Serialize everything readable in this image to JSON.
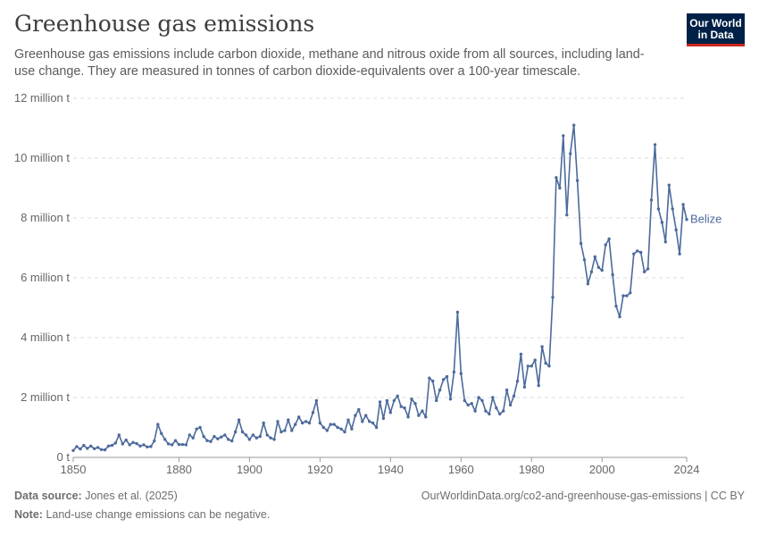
{
  "header": {
    "title": "Greenhouse gas emissions",
    "subtitle": "Greenhouse gas emissions include carbon dioxide, methane and nitrous oxide from all sources, including land-use change. They are measured in tonnes of carbon dioxide-equivalents over a 100-year timescale.",
    "logo_line1": "Our World",
    "logo_line2": "in Data"
  },
  "footer": {
    "source_label": "Data source:",
    "source_text": "Jones et al. (2025)",
    "url_text": "OurWorldinData.org/co2-and-greenhouse-gas-emissions | CC BY",
    "note_label": "Note:",
    "note_text": "Land-use change emissions can be negative."
  },
  "colors": {
    "series": "#4c6a9c",
    "grid": "#dddddd",
    "logo_bg": "#002147",
    "logo_accent": "#ce261e"
  },
  "chart_data": {
    "type": "line",
    "title": "Greenhouse gas emissions",
    "xlabel": "",
    "ylabel": "",
    "xlim": [
      1850,
      2024
    ],
    "ylim": [
      0,
      12000000
    ],
    "grid": "horizontal dashed",
    "y_ticks": [
      {
        "value": 0,
        "label": "0 t"
      },
      {
        "value": 2000000,
        "label": "2 million t"
      },
      {
        "value": 4000000,
        "label": "4 million t"
      },
      {
        "value": 6000000,
        "label": "6 million t"
      },
      {
        "value": 8000000,
        "label": "8 million t"
      },
      {
        "value": 10000000,
        "label": "10 million t"
      },
      {
        "value": 12000000,
        "label": "12 million t"
      }
    ],
    "x_ticks": [
      {
        "value": 1850,
        "label": "1850"
      },
      {
        "value": 1880,
        "label": "1880"
      },
      {
        "value": 1900,
        "label": "1900"
      },
      {
        "value": 1920,
        "label": "1920"
      },
      {
        "value": 1940,
        "label": "1940"
      },
      {
        "value": 1960,
        "label": "1960"
      },
      {
        "value": 1980,
        "label": "1980"
      },
      {
        "value": 2000,
        "label": "2000"
      },
      {
        "value": 2024,
        "label": "2024"
      }
    ],
    "series": [
      {
        "name": "Belize",
        "x": [
          1850,
          1851,
          1852,
          1853,
          1854,
          1855,
          1856,
          1857,
          1858,
          1859,
          1860,
          1861,
          1862,
          1863,
          1864,
          1865,
          1866,
          1867,
          1868,
          1869,
          1870,
          1871,
          1872,
          1873,
          1874,
          1875,
          1876,
          1877,
          1878,
          1879,
          1880,
          1881,
          1882,
          1883,
          1884,
          1885,
          1886,
          1887,
          1888,
          1889,
          1890,
          1891,
          1892,
          1893,
          1894,
          1895,
          1896,
          1897,
          1898,
          1899,
          1900,
          1901,
          1902,
          1903,
          1904,
          1905,
          1906,
          1907,
          1908,
          1909,
          1910,
          1911,
          1912,
          1913,
          1914,
          1915,
          1916,
          1917,
          1918,
          1919,
          1920,
          1921,
          1922,
          1923,
          1924,
          1925,
          1926,
          1927,
          1928,
          1929,
          1930,
          1931,
          1932,
          1933,
          1934,
          1935,
          1936,
          1937,
          1938,
          1939,
          1940,
          1941,
          1942,
          1943,
          1944,
          1945,
          1946,
          1947,
          1948,
          1949,
          1950,
          1951,
          1952,
          1953,
          1954,
          1955,
          1956,
          1957,
          1958,
          1959,
          1960,
          1961,
          1962,
          1963,
          1964,
          1965,
          1966,
          1967,
          1968,
          1969,
          1970,
          1971,
          1972,
          1973,
          1974,
          1975,
          1976,
          1977,
          1978,
          1979,
          1980,
          1981,
          1982,
          1983,
          1984,
          1985,
          1986,
          1987,
          1988,
          1989,
          1990,
          1991,
          1992,
          1993,
          1994,
          1995,
          1996,
          1997,
          1998,
          1999,
          2000,
          2001,
          2002,
          2003,
          2004,
          2005,
          2006,
          2007,
          2008,
          2009,
          2010,
          2011,
          2012,
          2013,
          2014,
          2015,
          2016,
          2017,
          2018,
          2019,
          2020,
          2021,
          2022,
          2023,
          2024
        ],
        "values": [
          230000,
          360000,
          280000,
          400000,
          300000,
          380000,
          290000,
          330000,
          260000,
          250000,
          380000,
          400000,
          480000,
          750000,
          450000,
          580000,
          420000,
          500000,
          460000,
          380000,
          420000,
          350000,
          360000,
          550000,
          1100000,
          800000,
          600000,
          450000,
          420000,
          560000,
          430000,
          430000,
          420000,
          750000,
          650000,
          950000,
          1000000,
          700000,
          560000,
          530000,
          700000,
          620000,
          680000,
          750000,
          600000,
          550000,
          850000,
          1250000,
          850000,
          750000,
          600000,
          750000,
          650000,
          700000,
          1150000,
          750000,
          650000,
          600000,
          1200000,
          850000,
          900000,
          1250000,
          900000,
          1100000,
          1350000,
          1150000,
          1200000,
          1150000,
          1500000,
          1900000,
          1150000,
          1000000,
          900000,
          1100000,
          1100000,
          1000000,
          950000,
          850000,
          1250000,
          950000,
          1400000,
          1600000,
          1200000,
          1400000,
          1200000,
          1150000,
          1000000,
          1850000,
          1300000,
          1900000,
          1500000,
          1900000,
          2050000,
          1700000,
          1650000,
          1350000,
          1950000,
          1800000,
          1400000,
          1550000,
          1350000,
          2650000,
          2550000,
          1900000,
          2250000,
          2600000,
          2700000,
          1950000,
          2850000,
          4850000,
          2800000,
          1900000,
          1750000,
          1800000,
          1550000,
          2000000,
          1900000,
          1550000,
          1450000,
          2000000,
          1650000,
          1450000,
          1550000,
          2250000,
          1750000,
          2050000,
          2550000,
          3450000,
          2350000,
          3050000,
          3050000,
          3250000,
          2400000,
          3700000,
          3150000,
          3050000,
          5350000,
          9350000,
          9000000,
          10750000,
          8100000,
          10150000,
          11100000,
          9250000,
          7150000,
          6600000,
          5800000,
          6200000,
          6700000,
          6350000,
          6250000,
          7100000,
          7300000,
          6100000,
          5050000,
          4700000,
          5400000,
          5400000,
          5500000,
          6800000,
          6900000,
          6850000,
          6200000,
          6300000,
          8600000,
          10450000,
          8300000,
          7850000,
          7200000,
          9100000,
          8300000,
          7600000,
          6800000,
          8450000,
          7950000
        ]
      }
    ]
  }
}
